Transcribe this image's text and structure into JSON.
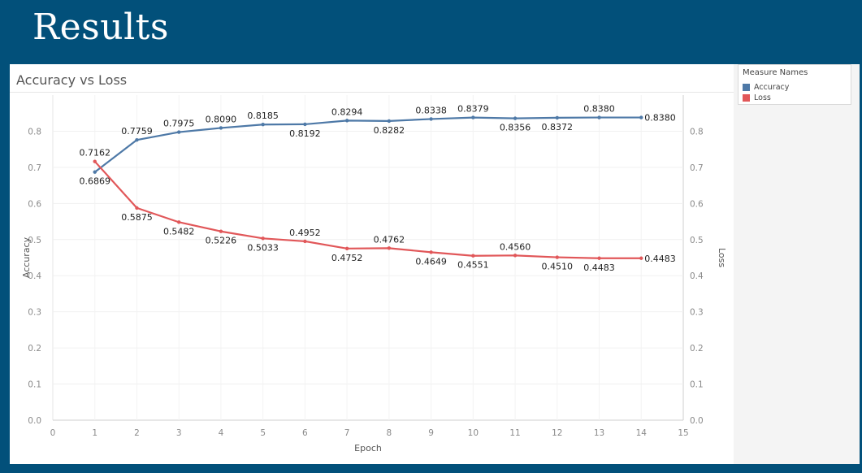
{
  "slide": {
    "title": "Results"
  },
  "legend": {
    "title": "Measure Names",
    "items": [
      {
        "label": "Accuracy",
        "color": "#4e79a7"
      },
      {
        "label": "Loss",
        "color": "#e15759"
      }
    ]
  },
  "chart_data": {
    "type": "line",
    "title": "Accuracy vs Loss",
    "xlabel": "Epoch",
    "ylabel_left": "Accuracy",
    "ylabel_right": "Loss",
    "xlim": [
      0,
      15
    ],
    "ylim": [
      0.0,
      0.9
    ],
    "x_ticks": [
      0,
      1,
      2,
      3,
      4,
      5,
      6,
      7,
      8,
      9,
      10,
      11,
      12,
      13,
      14,
      15
    ],
    "y_ticks": [
      0.0,
      0.1,
      0.2,
      0.3,
      0.4,
      0.5,
      0.6,
      0.7,
      0.8
    ],
    "grid": true,
    "legend_position": "top-right",
    "x": [
      1,
      2,
      3,
      4,
      5,
      6,
      7,
      8,
      9,
      10,
      11,
      12,
      13,
      14
    ],
    "series": [
      {
        "name": "Accuracy",
        "color": "#4e79a7",
        "values": [
          0.6869,
          0.7759,
          0.7975,
          0.809,
          0.8185,
          0.8192,
          0.8294,
          0.8282,
          0.8338,
          0.8379,
          0.8356,
          0.8372,
          0.838,
          0.838
        ],
        "labels": [
          "0.6869",
          "0.7759",
          "0.7975",
          "0.8090",
          "0.8185",
          "0.8192",
          "0.8294",
          "0.8282",
          "0.8338",
          "0.8379",
          "0.8356",
          "0.8372",
          "0.8380",
          "0.8380"
        ]
      },
      {
        "name": "Loss",
        "color": "#e15759",
        "values": [
          0.7162,
          0.5875,
          0.5482,
          0.5226,
          0.5033,
          0.4952,
          0.4752,
          0.4762,
          0.4649,
          0.4551,
          0.456,
          0.451,
          0.4483,
          0.4483
        ],
        "labels": [
          "0.7162",
          "0.5875",
          "0.5482",
          "0.5226",
          "0.5033",
          "0.4952",
          "0.4752",
          "0.4762",
          "0.4649",
          "0.4551",
          "0.4560",
          "0.4510",
          "0.4483",
          "0.4483"
        ]
      }
    ]
  }
}
